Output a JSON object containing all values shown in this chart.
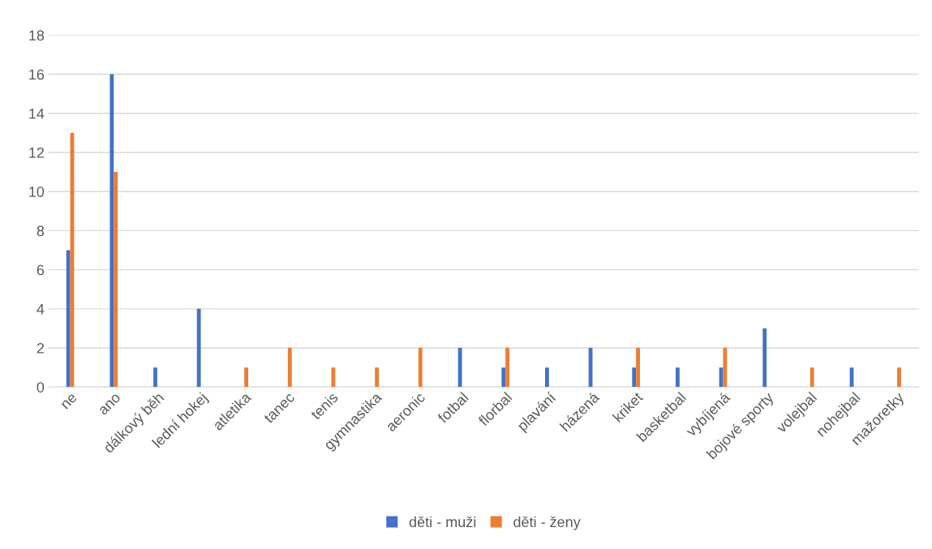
{
  "chart_data": {
    "type": "bar",
    "categories": [
      "ne",
      "ano",
      "dálkový běh",
      "lední hokej",
      "atletika",
      "tanec",
      "tenis",
      "gymnastika",
      "aeronic",
      "fotbal",
      "florbal",
      "plavání",
      "házená",
      "kriket",
      "basketbal",
      "vybíjená",
      "bojové sporty",
      "volejbal",
      "nohejbal",
      "mažoretky"
    ],
    "series": [
      {
        "name": "děti - muži",
        "color": "#4472c4",
        "values": [
          7,
          16,
          1,
          4,
          0,
          0,
          0,
          0,
          0,
          2,
          1,
          1,
          2,
          1,
          1,
          1,
          3,
          0,
          1,
          0
        ]
      },
      {
        "name": "děti - ženy",
        "color": "#ed7d31",
        "values": [
          13,
          11,
          0,
          0,
          1,
          2,
          1,
          1,
          2,
          0,
          2,
          0,
          0,
          2,
          0,
          2,
          0,
          1,
          0,
          1
        ]
      }
    ],
    "ylim": [
      0,
      18
    ],
    "yticks": [
      0,
      2,
      4,
      6,
      8,
      10,
      12,
      14,
      16,
      18
    ],
    "grid": "y",
    "legend": "bottom"
  }
}
